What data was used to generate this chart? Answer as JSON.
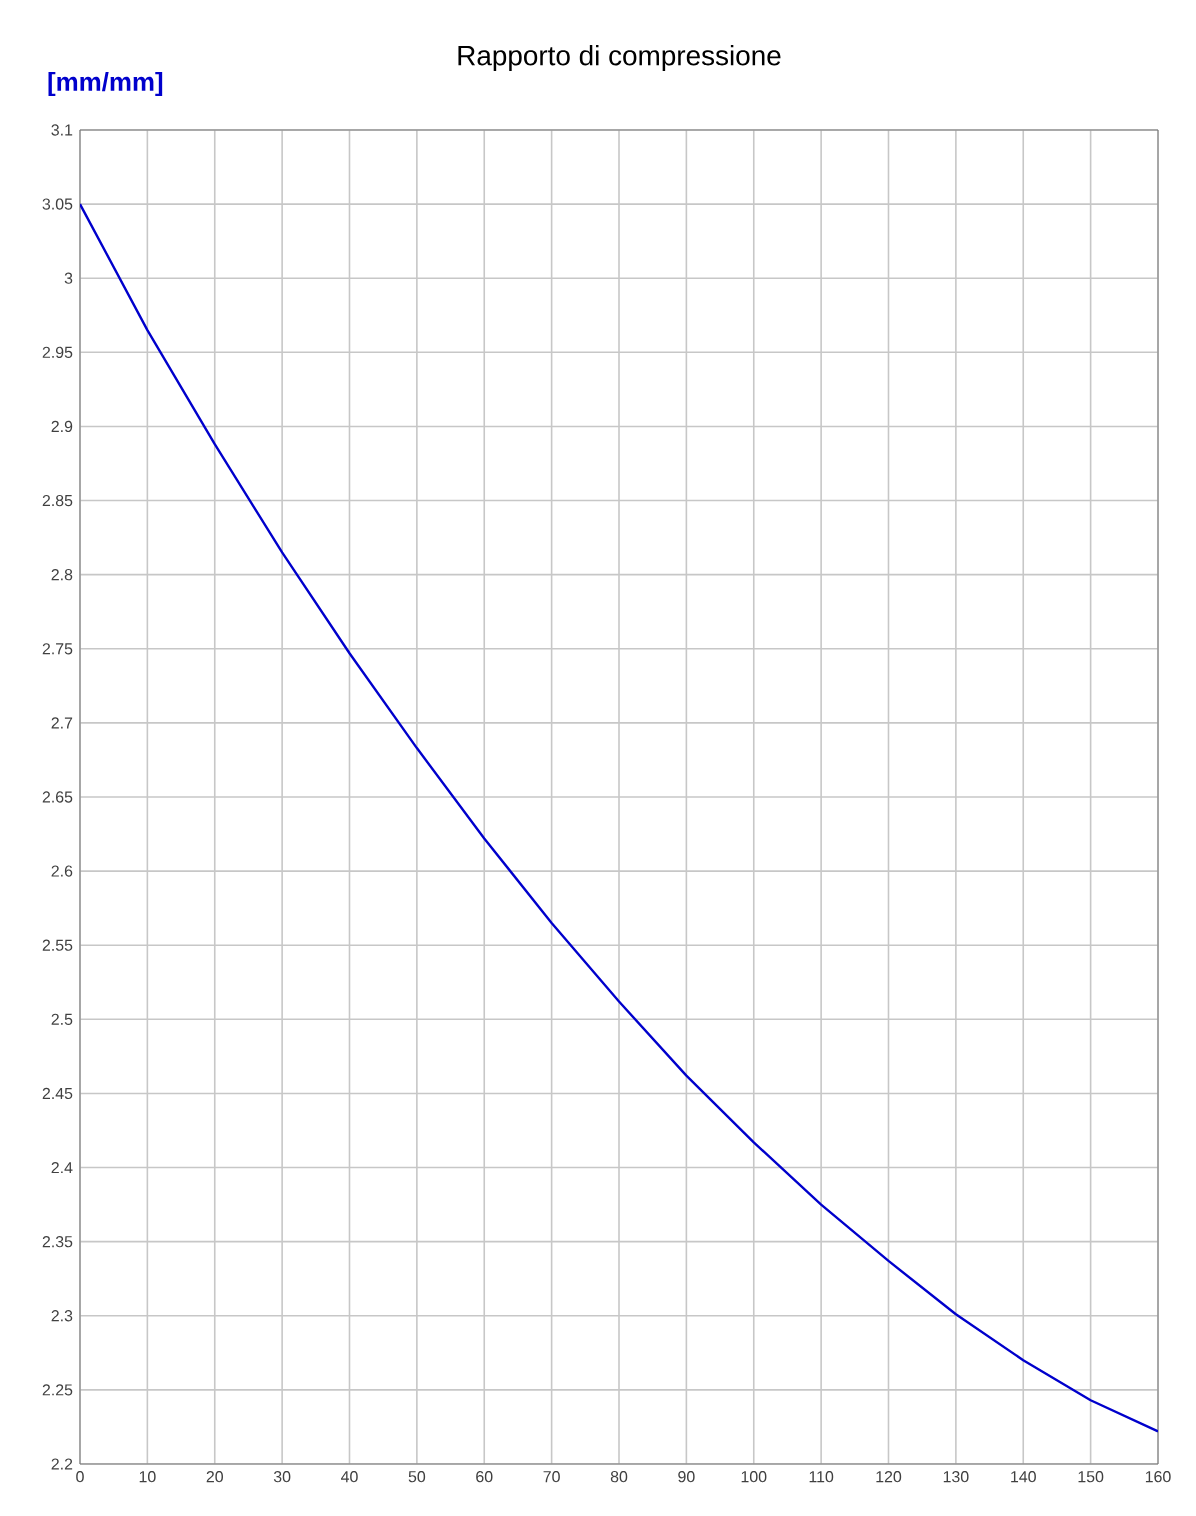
{
  "chart_data": {
    "type": "line",
    "title": "Rapporto di compressione",
    "ylabel": "[mm/mm]",
    "x": [
      0,
      10,
      20,
      30,
      40,
      50,
      60,
      70,
      80,
      90,
      100,
      110,
      120,
      130,
      140,
      150,
      160
    ],
    "series": [
      {
        "color": "#0000cc",
        "values": [
          3.05,
          2.965,
          2.888,
          2.815,
          2.747,
          2.683,
          2.622,
          2.565,
          2.512,
          2.462,
          2.417,
          2.375,
          2.337,
          2.301,
          2.27,
          2.243,
          2.222
        ]
      }
    ],
    "xlim": [
      0,
      160
    ],
    "ylim": [
      2.2,
      3.1
    ],
    "xticks": [
      0,
      10,
      20,
      30,
      40,
      50,
      60,
      70,
      80,
      90,
      100,
      110,
      120,
      130,
      140,
      150,
      160
    ],
    "yticks": [
      2.2,
      2.25,
      2.3,
      2.35,
      2.4,
      2.45,
      2.5,
      2.55,
      2.6,
      2.65,
      2.7,
      2.75,
      2.8,
      2.85,
      2.9,
      2.95,
      3,
      3.05,
      3.1
    ],
    "grid": true,
    "marker": "none",
    "line_style": "solid"
  }
}
